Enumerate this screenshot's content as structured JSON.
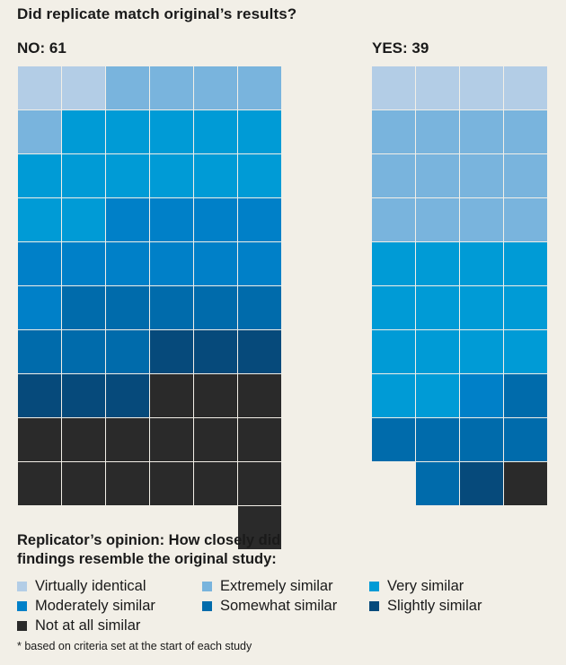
{
  "title": "Did replicate match original’s results?",
  "chart_data": {
    "type": "waffle",
    "title": "Did replicate match original’s results?",
    "groups": [
      {
        "name": "NO",
        "label": "NO: 61",
        "total": 61,
        "columns": 6,
        "counts": [
          2,
          5,
          13,
          11,
          8,
          6,
          16
        ]
      },
      {
        "name": "YES",
        "label": "YES: 39",
        "total": 39,
        "columns": 4,
        "counts": [
          4,
          12,
          14,
          1,
          6,
          1,
          1
        ]
      }
    ],
    "legend_title_lines": [
      "Replicator’s opinion: How closely did",
      "findings resemble the original study:"
    ],
    "categories": [
      "Virtually identical",
      "Extremely similar",
      "Very similar",
      "Moderately similar",
      "Somewhat similar",
      "Slightly similar",
      "Not at all similar"
    ],
    "colors": [
      "#b3cde6",
      "#79b4dd",
      "#009bd6",
      "#0080c8",
      "#006bab",
      "#064a7b",
      "#2a2a2a"
    ]
  },
  "footnote": "* based on criteria set at the start of each study"
}
